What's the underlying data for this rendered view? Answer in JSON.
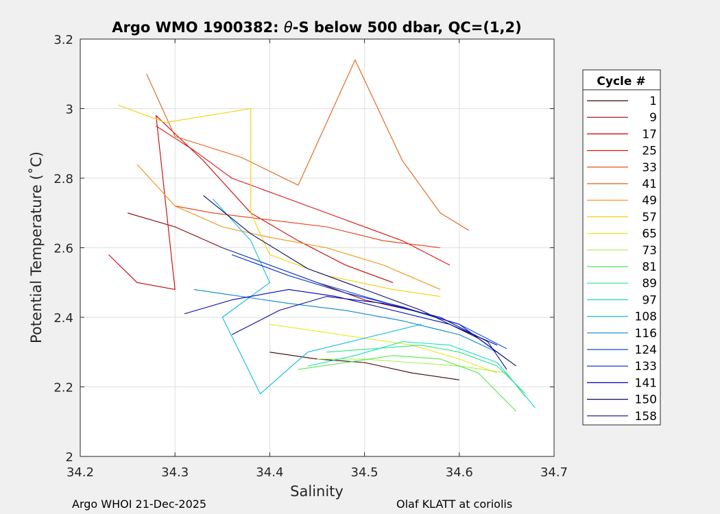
{
  "chart_data": {
    "type": "line",
    "title_pre": "Argo WMO 1900382: ",
    "title_theta": "θ",
    "title_post": "-S below 500 dbar,  QC=(1,2)",
    "xlabel": "Salinity",
    "ylabel": "Potential Temperature (˚C)",
    "xlim": [
      34.2,
      34.7
    ],
    "ylim": [
      2.0,
      3.2
    ],
    "xticks": [
      "34.2",
      "34.3",
      "34.4",
      "34.5",
      "34.6",
      "34.7"
    ],
    "yticks": [
      "2",
      "2.2",
      "2.4",
      "2.6",
      "2.8",
      "3",
      "3.2"
    ],
    "grid": true,
    "legend": {
      "title": "Cycle #",
      "placement": "right, outside",
      "entries": [
        {
          "label": "1",
          "color": "#3a0000"
        },
        {
          "label": "9",
          "color": "#8b0000"
        },
        {
          "label": "17",
          "color": "#c80000"
        },
        {
          "label": "25",
          "color": "#e01010"
        },
        {
          "label": "33",
          "color": "#e83a0a"
        },
        {
          "label": "41",
          "color": "#e06010"
        },
        {
          "label": "49",
          "color": "#f09010"
        },
        {
          "label": "57",
          "color": "#f5cf00"
        },
        {
          "label": "65",
          "color": "#e4ec10"
        },
        {
          "label": "73",
          "color": "#aaf050"
        },
        {
          "label": "81",
          "color": "#52e852"
        },
        {
          "label": "89",
          "color": "#28e880"
        },
        {
          "label": "97",
          "color": "#10e0c0"
        },
        {
          "label": "108",
          "color": "#10b8e8"
        },
        {
          "label": "116",
          "color": "#0888c8"
        },
        {
          "label": "124",
          "color": "#0a50c8"
        },
        {
          "label": "133",
          "color": "#0020d8"
        },
        {
          "label": "141",
          "color": "#0000b0"
        },
        {
          "label": "150",
          "color": "#08086a"
        },
        {
          "label": "158",
          "color": "#0a0aa0"
        }
      ]
    },
    "series": [
      {
        "name": "1",
        "color": "#3a0000",
        "points": [
          [
            34.4,
            2.3
          ],
          [
            34.45,
            2.28
          ],
          [
            34.5,
            2.27
          ],
          [
            34.55,
            2.24
          ],
          [
            34.6,
            2.22
          ]
        ]
      },
      {
        "name": "9",
        "color": "#8b0000",
        "points": [
          [
            34.25,
            2.7
          ],
          [
            34.3,
            2.66
          ],
          [
            34.35,
            2.6
          ],
          [
            34.4,
            2.55
          ],
          [
            34.45,
            2.5
          ],
          [
            34.5,
            2.45
          ],
          [
            34.55,
            2.42
          ]
        ]
      },
      {
        "name": "17",
        "color": "#c80000",
        "points": [
          [
            34.23,
            2.58
          ],
          [
            34.26,
            2.5
          ],
          [
            34.3,
            2.48
          ],
          [
            34.28,
            2.98
          ],
          [
            34.33,
            2.85
          ],
          [
            34.38,
            2.7
          ],
          [
            34.43,
            2.62
          ],
          [
            34.48,
            2.55
          ],
          [
            34.53,
            2.5
          ]
        ]
      },
      {
        "name": "25",
        "color": "#e01010",
        "points": [
          [
            34.28,
            2.95
          ],
          [
            34.32,
            2.88
          ],
          [
            34.36,
            2.8
          ],
          [
            34.42,
            2.74
          ],
          [
            34.48,
            2.68
          ],
          [
            34.54,
            2.62
          ],
          [
            34.59,
            2.55
          ]
        ]
      },
      {
        "name": "33",
        "color": "#e83a0a",
        "points": [
          [
            34.3,
            2.72
          ],
          [
            34.34,
            2.7
          ],
          [
            34.4,
            2.68
          ],
          [
            34.46,
            2.66
          ],
          [
            34.52,
            2.62
          ],
          [
            34.58,
            2.6
          ]
        ]
      },
      {
        "name": "41",
        "color": "#e06010",
        "points": [
          [
            34.27,
            3.1
          ],
          [
            34.3,
            2.92
          ],
          [
            34.37,
            2.86
          ],
          [
            34.43,
            2.78
          ],
          [
            34.49,
            3.14
          ],
          [
            34.54,
            2.85
          ],
          [
            34.58,
            2.7
          ],
          [
            34.61,
            2.65
          ]
        ]
      },
      {
        "name": "49",
        "color": "#f09010",
        "points": [
          [
            34.26,
            2.84
          ],
          [
            34.3,
            2.72
          ],
          [
            34.35,
            2.66
          ],
          [
            34.4,
            2.63
          ],
          [
            34.46,
            2.6
          ],
          [
            34.52,
            2.55
          ],
          [
            34.58,
            2.48
          ]
        ]
      },
      {
        "name": "57",
        "color": "#f5cf00",
        "points": [
          [
            34.24,
            3.01
          ],
          [
            34.29,
            2.96
          ],
          [
            34.38,
            3.0
          ],
          [
            34.38,
            2.7
          ],
          [
            34.4,
            2.58
          ],
          [
            34.46,
            2.52
          ],
          [
            34.53,
            2.48
          ],
          [
            34.58,
            2.46
          ]
        ]
      },
      {
        "name": "65",
        "color": "#e4ec10",
        "points": [
          [
            34.4,
            2.38
          ],
          [
            34.45,
            2.36
          ],
          [
            34.5,
            2.34
          ],
          [
            34.55,
            2.32
          ],
          [
            34.6,
            2.28
          ],
          [
            34.64,
            2.24
          ]
        ]
      },
      {
        "name": "73",
        "color": "#aaf050",
        "points": [
          [
            34.45,
            2.28
          ],
          [
            34.5,
            2.28
          ],
          [
            34.55,
            2.27
          ],
          [
            34.6,
            2.26
          ],
          [
            34.65,
            2.24
          ],
          [
            34.67,
            2.17
          ]
        ]
      },
      {
        "name": "81",
        "color": "#52e852",
        "points": [
          [
            34.43,
            2.25
          ],
          [
            34.48,
            2.27
          ],
          [
            34.53,
            2.29
          ],
          [
            34.58,
            2.28
          ],
          [
            34.62,
            2.24
          ],
          [
            34.66,
            2.13
          ]
        ]
      },
      {
        "name": "89",
        "color": "#28e880",
        "points": [
          [
            34.46,
            2.3
          ],
          [
            34.51,
            2.31
          ],
          [
            34.56,
            2.32
          ],
          [
            34.6,
            2.3
          ],
          [
            34.64,
            2.26
          ],
          [
            34.67,
            2.18
          ]
        ]
      },
      {
        "name": "97",
        "color": "#10e0c0",
        "points": [
          [
            34.44,
            2.26
          ],
          [
            34.49,
            2.29
          ],
          [
            34.54,
            2.33
          ],
          [
            34.59,
            2.32
          ],
          [
            34.64,
            2.27
          ],
          [
            34.68,
            2.14
          ]
        ]
      },
      {
        "name": "108",
        "color": "#10b8e8",
        "points": [
          [
            34.34,
            2.74
          ],
          [
            34.38,
            2.62
          ],
          [
            34.4,
            2.5
          ],
          [
            34.35,
            2.4
          ],
          [
            34.39,
            2.18
          ],
          [
            34.44,
            2.3
          ],
          [
            34.5,
            2.34
          ],
          [
            34.56,
            2.38
          ]
        ]
      },
      {
        "name": "116",
        "color": "#0888c8",
        "points": [
          [
            34.32,
            2.48
          ],
          [
            34.37,
            2.46
          ],
          [
            34.42,
            2.44
          ],
          [
            34.48,
            2.42
          ],
          [
            34.54,
            2.39
          ],
          [
            34.6,
            2.35
          ],
          [
            34.64,
            2.3
          ]
        ]
      },
      {
        "name": "124",
        "color": "#0a50c8",
        "points": [
          [
            34.35,
            2.6
          ],
          [
            34.4,
            2.55
          ],
          [
            34.45,
            2.5
          ],
          [
            34.5,
            2.46
          ],
          [
            34.55,
            2.42
          ],
          [
            34.6,
            2.38
          ],
          [
            34.65,
            2.31
          ]
        ]
      },
      {
        "name": "133",
        "color": "#0020d8",
        "points": [
          [
            34.36,
            2.58
          ],
          [
            34.42,
            2.52
          ],
          [
            34.48,
            2.47
          ],
          [
            34.54,
            2.43
          ],
          [
            34.6,
            2.38
          ],
          [
            34.65,
            2.28
          ]
        ]
      },
      {
        "name": "141",
        "color": "#0000b0",
        "points": [
          [
            34.31,
            2.41
          ],
          [
            34.36,
            2.45
          ],
          [
            34.42,
            2.48
          ],
          [
            34.47,
            2.46
          ],
          [
            34.53,
            2.42
          ],
          [
            34.59,
            2.38
          ],
          [
            34.64,
            2.32
          ]
        ]
      },
      {
        "name": "150",
        "color": "#08086a",
        "points": [
          [
            34.33,
            2.75
          ],
          [
            34.38,
            2.64
          ],
          [
            34.44,
            2.54
          ],
          [
            34.5,
            2.48
          ],
          [
            34.56,
            2.42
          ],
          [
            34.62,
            2.34
          ],
          [
            34.66,
            2.26
          ]
        ]
      },
      {
        "name": "158",
        "color": "#0a0aa0",
        "points": [
          [
            34.36,
            2.35
          ],
          [
            34.41,
            2.42
          ],
          [
            34.46,
            2.46
          ],
          [
            34.52,
            2.44
          ],
          [
            34.58,
            2.4
          ],
          [
            34.63,
            2.33
          ],
          [
            34.65,
            2.25
          ]
        ]
      }
    ]
  },
  "footer": {
    "left": "Argo WHOI 21-Dec-2025",
    "right": "Olaf KLATT at coriolis"
  }
}
